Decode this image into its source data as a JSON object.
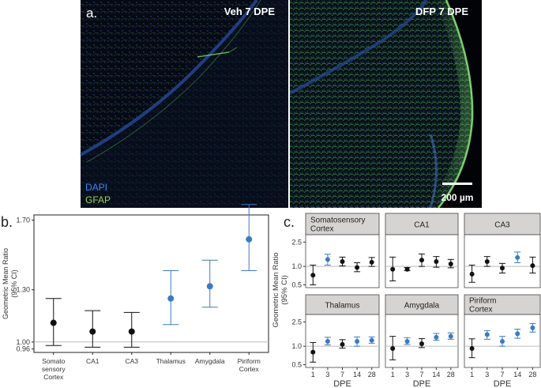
{
  "panel_a": {
    "label": "a.",
    "left_title": "Veh 7 DPE",
    "right_title": "DFP 7 DPE",
    "legend_dapi": "DAPI",
    "legend_gfap": "GFAP",
    "scale_bar": "200 µm",
    "colors": {
      "dapi": "#1e6bd6",
      "gfap": "#7ee06a"
    }
  },
  "panel_b": {
    "label": "b."
  },
  "panel_c": {
    "label": "c."
  },
  "chart_data": [
    {
      "type": "scatter",
      "title": "",
      "xlabel": "",
      "ylabel": "Geometric Mean Ratio (95% CI)",
      "categories": [
        "Somatosensory Cortex",
        "CA1",
        "CA3",
        "Thalamus",
        "Amygdala",
        "Piriform Cortex"
      ],
      "category_labels": [
        [
          "Somato",
          "sensory",
          "Cortex"
        ],
        [
          "CA1"
        ],
        [
          "CA3"
        ],
        [
          "Thalamus"
        ],
        [
          "Amygdala"
        ],
        [
          "Piriform",
          "Cortex"
        ]
      ],
      "ytick_labels": [
        "0.96",
        "1.00",
        "1.30",
        "1.70"
      ],
      "ylim": [
        0.94,
        1.73
      ],
      "reference_line": 1.0,
      "values": [
        1.11,
        1.06,
        1.06,
        1.25,
        1.32,
        1.59
      ],
      "ci_low": [
        0.98,
        0.97,
        0.97,
        1.1,
        1.2,
        1.41
      ],
      "ci_high": [
        1.25,
        1.18,
        1.17,
        1.41,
        1.47,
        1.79
      ],
      "point_colors": [
        "#111111",
        "#111111",
        "#111111",
        "#3c7ac0",
        "#3c7ac0",
        "#3c7ac0"
      ],
      "grid": false
    },
    {
      "type": "scatter",
      "facets": [
        "Somatosensory Cortex",
        "CA1",
        "CA3",
        "Thalamus",
        "Amygdala",
        "Piriform Cortex"
      ],
      "facet_labels": [
        [
          "Somatosensory",
          "Cortex"
        ],
        [
          "CA1"
        ],
        [
          "CA3"
        ],
        [
          "Thalamus"
        ],
        [
          "Amygdala"
        ],
        [
          "Piriform",
          "Cortex"
        ]
      ],
      "x": [
        "1",
        "3",
        "7",
        "14",
        "28"
      ],
      "xlabel": "DPE",
      "ylabel": "Geometric Mean Ratio (95% CI)",
      "ytick_labels": [
        "0.5",
        "1.0",
        "2.5"
      ],
      "yscale": "log",
      "yticks": [
        0.5,
        1.0,
        2.5
      ],
      "ylim": [
        0.45,
        3.3
      ],
      "reference_line": 1.0,
      "colors": {
        "significant": "#3c7ac0",
        "not_significant": "#111111"
      },
      "series": [
        {
          "facet": "Somatosensory Cortex",
          "values": [
            0.72,
            1.3,
            1.2,
            0.96,
            1.17
          ],
          "ci_low": [
            0.5,
            1.05,
            1.02,
            0.82,
            1.0
          ],
          "ci_high": [
            1.05,
            1.58,
            1.42,
            1.15,
            1.4
          ],
          "significant": [
            false,
            true,
            false,
            false,
            false
          ]
        },
        {
          "facet": "CA1",
          "values": [
            0.9,
            0.9,
            1.27,
            1.2,
            1.1
          ],
          "ci_low": [
            0.58,
            0.85,
            1.0,
            0.97,
            0.95
          ],
          "ci_high": [
            1.42,
            0.96,
            1.6,
            1.45,
            1.3
          ],
          "significant": [
            false,
            false,
            false,
            false,
            false
          ]
        },
        {
          "facet": "CA3",
          "values": [
            0.75,
            1.2,
            0.94,
            1.4,
            1.03
          ],
          "ci_low": [
            0.55,
            1.0,
            0.78,
            1.15,
            0.78
          ],
          "ci_high": [
            1.05,
            1.45,
            1.12,
            1.72,
            1.42
          ],
          "significant": [
            false,
            false,
            false,
            true,
            false
          ]
        },
        {
          "facet": "Thalamus",
          "values": [
            0.8,
            1.2,
            1.07,
            1.2,
            1.25
          ],
          "ci_low": [
            0.55,
            1.05,
            0.93,
            1.0,
            1.12
          ],
          "ci_high": [
            1.15,
            1.4,
            1.28,
            1.42,
            1.42
          ],
          "significant": [
            false,
            true,
            false,
            true,
            true
          ]
        },
        {
          "facet": "Amygdala",
          "values": [
            0.92,
            1.2,
            1.1,
            1.4,
            1.45
          ],
          "ci_low": [
            0.6,
            1.07,
            0.95,
            1.25,
            1.3
          ],
          "ci_high": [
            1.45,
            1.38,
            1.33,
            1.62,
            1.65
          ],
          "significant": [
            false,
            true,
            false,
            true,
            true
          ]
        },
        {
          "facet": "Piriform Cortex",
          "values": [
            0.92,
            1.55,
            1.2,
            1.6,
            2.0
          ],
          "ci_low": [
            0.65,
            1.3,
            1.0,
            1.35,
            1.7
          ],
          "ci_high": [
            1.32,
            1.8,
            1.45,
            1.9,
            2.35
          ],
          "significant": [
            false,
            true,
            true,
            true,
            true
          ]
        }
      ]
    }
  ]
}
